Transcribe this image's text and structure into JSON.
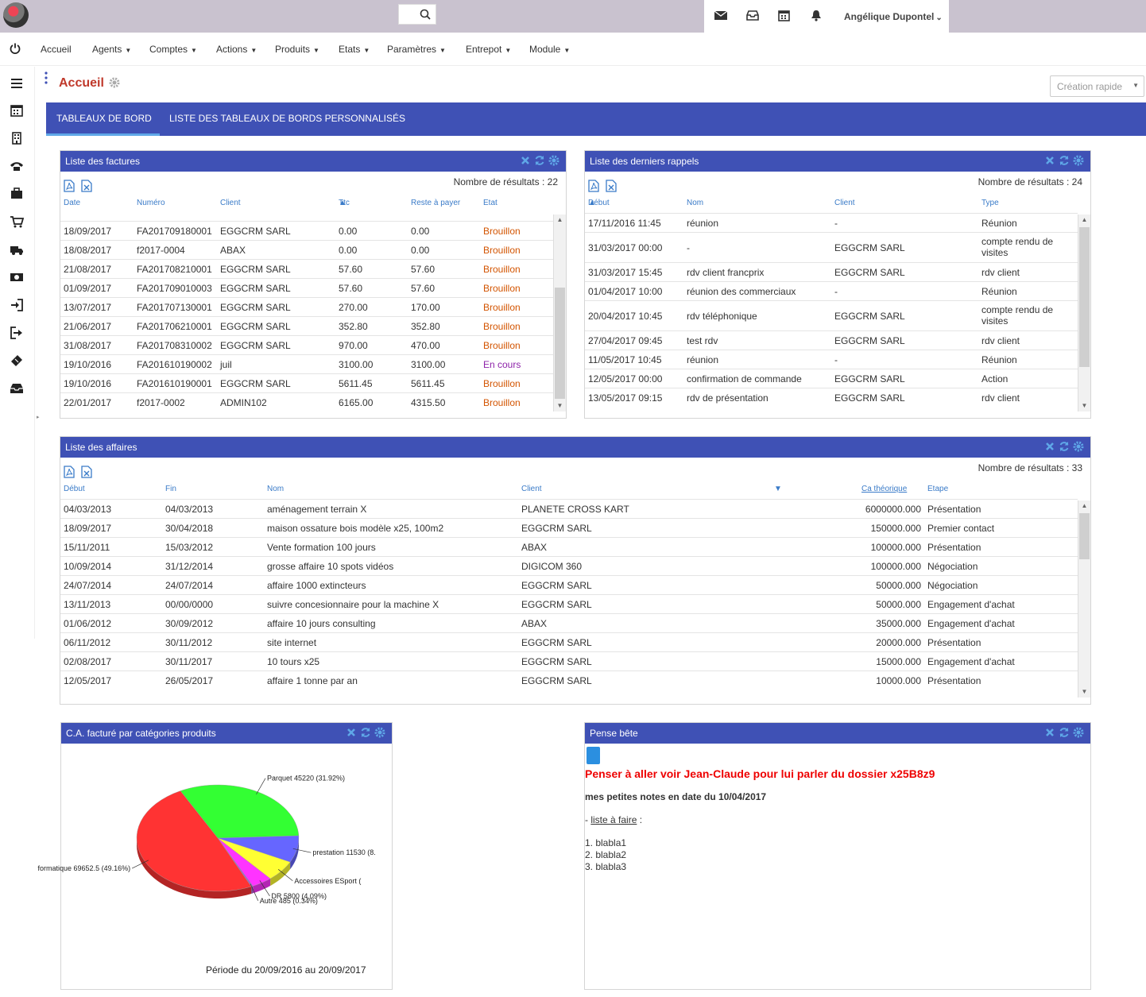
{
  "user": {
    "name": "Angélique Dupontel"
  },
  "menu": [
    "Accueil",
    "Agents",
    "Comptes",
    "Actions",
    "Produits",
    "Etats",
    "Paramètres",
    "Entrepot",
    "Module"
  ],
  "page": {
    "title": "Accueil",
    "quick_create": "Création rapide"
  },
  "tabs": [
    "TABLEAUX DE BORD",
    "LISTE DES TABLEAUX DE BORDS PERSONNALISÉS"
  ],
  "factures": {
    "title": "Liste des factures",
    "count": "Nombre de résultats : 22",
    "headers": [
      "Date",
      "Numéro",
      "Client",
      "Ttc",
      "Reste à payer",
      "Etat"
    ],
    "rows": [
      [
        "18/09/2017",
        "FA201709180001",
        "EGGCRM SARL",
        "0.00",
        "0.00",
        "Brouillon"
      ],
      [
        "18/08/2017",
        "f2017-0004",
        "ABAX",
        "0.00",
        "0.00",
        "Brouillon"
      ],
      [
        "21/08/2017",
        "FA201708210001",
        "EGGCRM SARL",
        "57.60",
        "57.60",
        "Brouillon"
      ],
      [
        "01/09/2017",
        "FA201709010003",
        "EGGCRM SARL",
        "57.60",
        "57.60",
        "Brouillon"
      ],
      [
        "13/07/2017",
        "FA201707130001",
        "EGGCRM SARL",
        "270.00",
        "170.00",
        "Brouillon"
      ],
      [
        "21/06/2017",
        "FA201706210001",
        "EGGCRM SARL",
        "352.80",
        "352.80",
        "Brouillon"
      ],
      [
        "31/08/2017",
        "FA201708310002",
        "EGGCRM SARL",
        "970.00",
        "470.00",
        "Brouillon"
      ],
      [
        "19/10/2016",
        "FA201610190002",
        "juil",
        "3100.00",
        "3100.00",
        "En cours"
      ],
      [
        "19/10/2016",
        "FA201610190001",
        "EGGCRM SARL",
        "5611.45",
        "5611.45",
        "Brouillon"
      ],
      [
        "22/01/2017",
        "f2017-0002",
        "ADMIN102",
        "6165.00",
        "4315.50",
        "Brouillon"
      ]
    ]
  },
  "rappels": {
    "title": "Liste des derniers rappels",
    "count": "Nombre de résultats : 24",
    "headers": [
      "Début",
      "Nom",
      "Client",
      "Type"
    ],
    "rows": [
      [
        "17/11/2016 11:45",
        "réunion",
        "-",
        "Réunion"
      ],
      [
        "31/03/2017 00:00",
        "-",
        "EGGCRM SARL",
        "compte rendu de visites"
      ],
      [
        "31/03/2017 15:45",
        "rdv client francprix",
        "EGGCRM SARL",
        "rdv client"
      ],
      [
        "01/04/2017 10:00",
        "réunion des commerciaux",
        "-",
        "Réunion"
      ],
      [
        "20/04/2017 10:45",
        "rdv téléphonique",
        "EGGCRM SARL",
        "compte rendu de visites"
      ],
      [
        "27/04/2017 09:45",
        "test rdv",
        "EGGCRM SARL",
        "rdv client"
      ],
      [
        "11/05/2017 10:45",
        "réunion",
        "-",
        "Réunion"
      ],
      [
        "12/05/2017 00:00",
        "confirmation de commande",
        "EGGCRM SARL",
        "Action"
      ],
      [
        "13/05/2017 09:15",
        "rdv de présentation",
        "EGGCRM SARL",
        "rdv client"
      ]
    ]
  },
  "affaires": {
    "title": "Liste des affaires",
    "count": "Nombre de résultats : 33",
    "headers": [
      "Début",
      "Fin",
      "Nom",
      "Client",
      "Ca théorique",
      "Etape"
    ],
    "rows": [
      [
        "04/03/2013",
        "04/03/2013",
        "aménagement terrain X",
        "PLANETE CROSS KART",
        "6000000.000",
        "Présentation"
      ],
      [
        "18/09/2017",
        "30/04/2018",
        "maison ossature bois modèle x25, 100m2",
        "EGGCRM SARL",
        "150000.000",
        "Premier contact"
      ],
      [
        "15/11/2011",
        "15/03/2012",
        "Vente formation 100 jours",
        "ABAX",
        "100000.000",
        "Présentation"
      ],
      [
        "10/09/2014",
        "31/12/2014",
        "grosse affaire 10 spots vidéos",
        "DIGICOM 360",
        "100000.000",
        "Négociation"
      ],
      [
        "24/07/2014",
        "24/07/2014",
        "affaire 1000 extincteurs",
        "EGGCRM SARL",
        "50000.000",
        "Négociation"
      ],
      [
        "13/11/2013",
        "00/00/0000",
        "suivre concesionnaire pour la machine X",
        "EGGCRM SARL",
        "50000.000",
        "Engagement d'achat"
      ],
      [
        "01/06/2012",
        "30/09/2012",
        "affaire 10 jours consulting",
        "ABAX",
        "35000.000",
        "Engagement d'achat"
      ],
      [
        "06/11/2012",
        "30/11/2012",
        "site internet",
        "EGGCRM SARL",
        "20000.000",
        "Présentation"
      ],
      [
        "02/08/2017",
        "30/11/2017",
        "10 tours x25",
        "EGGCRM SARL",
        "15000.000",
        "Engagement d'achat"
      ],
      [
        "12/05/2017",
        "26/05/2017",
        "affaire 1 tonne par an",
        "EGGCRM SARL",
        "10000.000",
        "Présentation"
      ]
    ]
  },
  "chart_panel": {
    "title": "C.A. facturé par catégories produits",
    "period": "Période du 20/09/2016 au 20/09/2017"
  },
  "chart_data": {
    "type": "pie",
    "slices": [
      {
        "label": "Parquet 45220 (31.92%)",
        "value": 45220,
        "color": "#33ff33"
      },
      {
        "label": "prestation 11530 (8.",
        "value": 11530,
        "color": "#6666ff"
      },
      {
        "label": "Accessoires ESport (",
        "value": 9000,
        "color": "#ffff33"
      },
      {
        "label": "DR 5800 (4.09%)",
        "value": 5800,
        "color": "#ff33ff"
      },
      {
        "label": "Autre 485 (0.34%)",
        "value": 485,
        "color": "#9966cc"
      },
      {
        "label": "formatique 69652.5 (49.16%)",
        "value": 69652.5,
        "color": "#ff3333"
      }
    ]
  },
  "pense": {
    "title": "Pense bête",
    "headline": "Penser à aller voir Jean-Claude pour lui parler du dossier x25B8z9",
    "subtitle": "mes petites notes en date du 10/04/2017",
    "list_prefix": "- ",
    "list_link": "liste à faire",
    "list_suffix": " :",
    "items": [
      "1. blabla1",
      "2. blabla2",
      "3. blabla3"
    ]
  }
}
